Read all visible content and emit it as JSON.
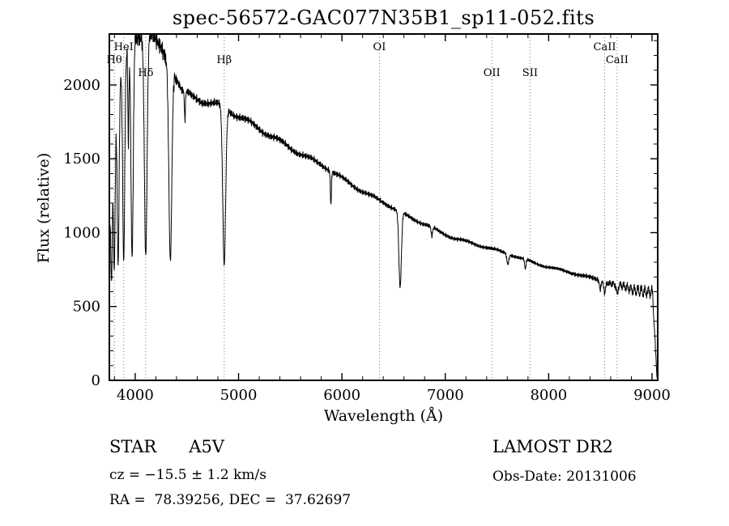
{
  "title": "spec-56572-GAC077N35B1_sp11-052.fits",
  "chart_data": {
    "type": "line",
    "title": "spec-56572-GAC077N35B1_sp11-052.fits",
    "xlabel": "Wavelength (Å)",
    "ylabel": "Flux (relative)",
    "xlim": [
      3750,
      9055
    ],
    "ylim": [
      0,
      2345
    ],
    "xticks": [
      4000,
      5000,
      6000,
      7000,
      8000,
      9000
    ],
    "xtick_minor_step": 200,
    "yticks": [
      0,
      500,
      1000,
      1500,
      2000
    ],
    "ytick_minor_step": 100,
    "grid": false,
    "line_color": "#000000",
    "marker_line_color": "#777777",
    "spectral_markers": [
      {
        "label": "HeI",
        "wavelength": 3889,
        "row": 1
      },
      {
        "label": "Hθ",
        "wavelength": 3798,
        "row": 2
      },
      {
        "label": "Hδ",
        "wavelength": 4102,
        "row": 3
      },
      {
        "label": "Hβ",
        "wavelength": 4861,
        "row": 2
      },
      {
        "label": "OI",
        "wavelength": 6363,
        "row": 1
      },
      {
        "label": "OII",
        "wavelength": 7450,
        "row": 3
      },
      {
        "label": "SII",
        "wavelength": 7820,
        "row": 3
      },
      {
        "label": "CaII",
        "wavelength": 8542,
        "row": 1
      },
      {
        "label": "CaII",
        "wavelength": 8662,
        "row": 2
      }
    ],
    "continuum_points": [
      [
        3750,
        1050
      ],
      [
        3800,
        1750
      ],
      [
        3850,
        2050
      ],
      [
        3900,
        2200
      ],
      [
        3950,
        2290
      ],
      [
        4000,
        2330
      ],
      [
        4150,
        2340
      ],
      [
        4250,
        2230
      ],
      [
        4350,
        2120
      ],
      [
        4450,
        1960
      ],
      [
        4550,
        1930
      ],
      [
        4650,
        1900
      ],
      [
        4750,
        1880
      ],
      [
        4850,
        1860
      ],
      [
        4950,
        1800
      ],
      [
        5050,
        1760
      ],
      [
        5150,
        1720
      ],
      [
        5250,
        1680
      ],
      [
        5350,
        1645
      ],
      [
        5450,
        1605
      ],
      [
        5550,
        1560
      ],
      [
        5650,
        1515
      ],
      [
        5750,
        1475
      ],
      [
        5850,
        1435
      ],
      [
        5950,
        1385
      ],
      [
        6050,
        1345
      ],
      [
        6150,
        1305
      ],
      [
        6250,
        1265
      ],
      [
        6350,
        1230
      ],
      [
        6450,
        1190
      ],
      [
        6550,
        1140
      ],
      [
        6650,
        1100
      ],
      [
        6750,
        1070
      ],
      [
        6850,
        1040
      ],
      [
        6950,
        1005
      ],
      [
        7100,
        965
      ],
      [
        7300,
        920
      ],
      [
        7500,
        875
      ],
      [
        7700,
        835
      ],
      [
        7900,
        790
      ],
      [
        8100,
        750
      ],
      [
        8300,
        710
      ],
      [
        8500,
        675
      ],
      [
        8700,
        640
      ],
      [
        8900,
        605
      ],
      [
        9000,
        590
      ],
      [
        9055,
        575
      ]
    ],
    "absorption_lines": [
      {
        "center": 3771,
        "sigma": 7,
        "depth": 0.5
      },
      {
        "center": 3798,
        "sigma": 8,
        "depth": 0.56
      },
      {
        "center": 3835,
        "sigma": 9,
        "depth": 0.6
      },
      {
        "center": 3889,
        "sigma": 10,
        "depth": 0.63
      },
      {
        "center": 3934,
        "sigma": 5,
        "depth": 0.3
      },
      {
        "center": 3970,
        "sigma": 11,
        "depth": 0.64
      },
      {
        "center": 4102,
        "sigma": 13,
        "depth": 0.64
      },
      {
        "center": 4340,
        "sigma": 14,
        "depth": 0.62
      },
      {
        "center": 4481,
        "sigma": 5,
        "depth": 0.1
      },
      {
        "center": 4861,
        "sigma": 14,
        "depth": 0.58
      },
      {
        "center": 5893,
        "sigma": 5,
        "depth": 0.16
      },
      {
        "center": 6563,
        "sigma": 12,
        "depth": 0.45
      },
      {
        "center": 6870,
        "sigma": 7,
        "depth": 0.06
      },
      {
        "center": 7605,
        "sigma": 9,
        "depth": 0.08
      },
      {
        "center": 7774,
        "sigma": 7,
        "depth": 0.08
      },
      {
        "center": 8498,
        "sigma": 7,
        "depth": 0.09
      },
      {
        "center": 8542,
        "sigma": 8,
        "depth": 0.11
      },
      {
        "center": 8662,
        "sigma": 8,
        "depth": 0.1
      }
    ],
    "noise": {
      "base_amplitude": 0.018,
      "blue_amplitude": 0.032,
      "blue_end": 4400,
      "red_ramp_start": 8100,
      "red_extra_amplitude": 0.04,
      "undulation_amplitude": 0.012,
      "fringe_start": 8480,
      "fringe_period": 34,
      "fringe_amplitude": 0.05
    },
    "edge_drop": {
      "start": 9005,
      "end": 9048
    }
  },
  "annotations": {
    "class_line": "STAR      A5V",
    "survey": "LAMOST DR2",
    "cz_line": "cz = −15.5 ± 1.2 km/s",
    "obs_date": "Obs-Date: 20131006",
    "ra_dec_line": "RA =  78.39256, DEC =  37.62697"
  }
}
